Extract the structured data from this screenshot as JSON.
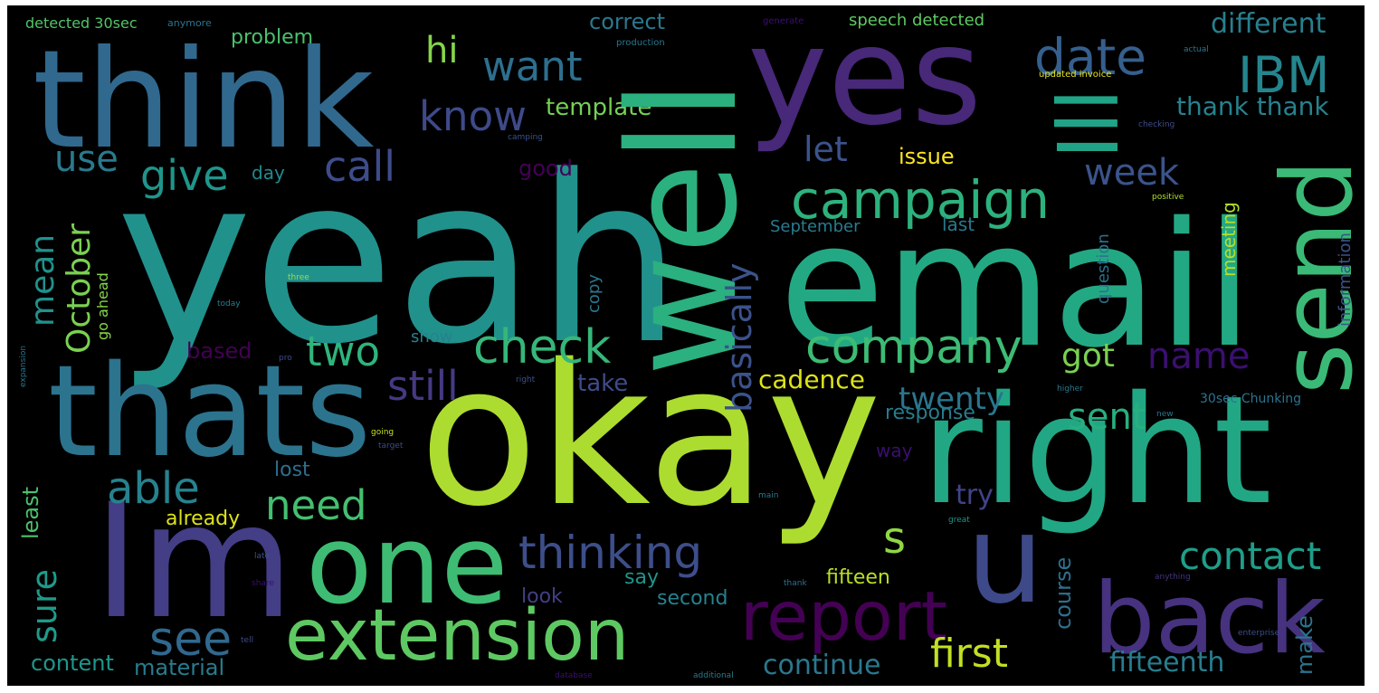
{
  "palette": {
    "background": "#000000",
    "frame": "#ffffff"
  },
  "words": [
    {
      "id": "yeah",
      "text": "yeah",
      "color": "#21918c"
    },
    {
      "id": "okay",
      "text": "okay",
      "color": "#addc30"
    },
    {
      "id": "email",
      "text": "email",
      "color": "#23a884"
    },
    {
      "id": "well",
      "text": "well",
      "color": "#2bb07f"
    },
    {
      "id": "yes",
      "text": "yes",
      "color": "#482878"
    },
    {
      "id": "think",
      "text": "think",
      "color": "#31688e"
    },
    {
      "id": "thats",
      "text": "thats",
      "color": "#2c738e"
    },
    {
      "id": "right",
      "text": "right",
      "color": "#22a785"
    },
    {
      "id": "im",
      "text": "Im",
      "color": "#433e85"
    },
    {
      "id": "one",
      "text": "one",
      "color": "#3fbc73"
    },
    {
      "id": "extension",
      "text": "extension",
      "color": "#5ec962"
    },
    {
      "id": "back",
      "text": "back",
      "color": "#46327e"
    },
    {
      "id": "send",
      "text": "send",
      "color": "#3aba76"
    },
    {
      "id": "u",
      "text": "u",
      "color": "#3e4989"
    },
    {
      "id": "ill",
      "text": "Ill",
      "color": "#20a386"
    },
    {
      "id": "report",
      "text": "report",
      "color": "#440154"
    },
    {
      "id": "company",
      "text": "company",
      "color": "#3dbc74"
    },
    {
      "id": "campaign",
      "text": "campaign",
      "color": "#2db27d"
    },
    {
      "id": "basically",
      "text": "basically",
      "color": "#3b528b"
    },
    {
      "id": "thinking",
      "text": "thinking",
      "color": "#3d4e8a"
    },
    {
      "id": "check",
      "text": "check",
      "color": "#35b779"
    },
    {
      "id": "see",
      "text": "see",
      "color": "#31688e"
    },
    {
      "id": "date",
      "text": "date",
      "color": "#355f8d"
    },
    {
      "id": "ibm",
      "text": "IBM",
      "color": "#25858e"
    },
    {
      "id": "want",
      "text": "want",
      "color": "#2e6f8e"
    },
    {
      "id": "know",
      "text": "know",
      "color": "#3e4a89"
    },
    {
      "id": "call",
      "text": "call",
      "color": "#3e4c8a"
    },
    {
      "id": "give",
      "text": "give",
      "color": "#1f958b"
    },
    {
      "id": "use",
      "text": "use",
      "color": "#297a8e"
    },
    {
      "id": "hi",
      "text": "hi",
      "color": "#86d549"
    },
    {
      "id": "let",
      "text": "let",
      "color": "#3b528b"
    },
    {
      "id": "week",
      "text": "week",
      "color": "#3a548c"
    },
    {
      "id": "two",
      "text": "two",
      "color": "#2fb47c"
    },
    {
      "id": "need",
      "text": "need",
      "color": "#44bf70"
    },
    {
      "id": "able",
      "text": "able",
      "color": "#26828e"
    },
    {
      "id": "still",
      "text": "still",
      "color": "#443a83"
    },
    {
      "id": "name",
      "text": "name",
      "color": "#3b0f70"
    },
    {
      "id": "got",
      "text": "got",
      "color": "#7ad151"
    },
    {
      "id": "sent",
      "text": "sent",
      "color": "#29af7f"
    },
    {
      "id": "twenty",
      "text": "twenty",
      "color": "#2a768e"
    },
    {
      "id": "contact",
      "text": "contact",
      "color": "#1f9e89"
    },
    {
      "id": "first",
      "text": "first",
      "color": "#c2df23"
    },
    {
      "id": "s",
      "text": "s",
      "color": "#90d743"
    },
    {
      "id": "october",
      "text": "October",
      "color": "#7ad151"
    },
    {
      "id": "mean",
      "text": "mean",
      "color": "#20928c"
    },
    {
      "id": "sure",
      "text": "sure",
      "color": "#1f9a8a"
    },
    {
      "id": "different",
      "text": "different",
      "color": "#277f8e"
    },
    {
      "id": "thank_thank",
      "text": "thank thank",
      "color": "#26828e"
    },
    {
      "id": "template",
      "text": "template",
      "color": "#75d054"
    },
    {
      "id": "correct",
      "text": "correct",
      "color": "#2a788e"
    },
    {
      "id": "problem",
      "text": "problem",
      "color": "#4ac16d"
    },
    {
      "id": "speech_detected",
      "text": "speech detected",
      "color": "#5ec962"
    },
    {
      "id": "detected_30sec",
      "text": "detected 30sec",
      "color": "#52c569"
    },
    {
      "id": "issue",
      "text": "issue",
      "color": "#fde725"
    },
    {
      "id": "cadence",
      "text": "cadence",
      "color": "#dde318"
    },
    {
      "id": "good",
      "text": "good",
      "color": "#440154"
    },
    {
      "id": "september",
      "text": "September",
      "color": "#297b8e"
    },
    {
      "id": "last",
      "text": "last",
      "color": "#2a788e"
    },
    {
      "id": "day",
      "text": "day",
      "color": "#238a8d"
    },
    {
      "id": "meeting",
      "text": "meeting",
      "color": "#b5de2b"
    },
    {
      "id": "question",
      "text": "question",
      "color": "#2c718e"
    },
    {
      "id": "information",
      "text": "information",
      "color": "#3b528b"
    },
    {
      "id": "response",
      "text": "response",
      "color": "#287c8e"
    },
    {
      "id": "go_ahead",
      "text": "go ahead",
      "color": "#86d549"
    },
    {
      "id": "based",
      "text": "based",
      "color": "#440154"
    },
    {
      "id": "show",
      "text": "show",
      "color": "#26828e"
    },
    {
      "id": "copy",
      "text": "copy",
      "color": "#2a768e"
    },
    {
      "id": "take",
      "text": "take",
      "color": "#3e4c8a"
    },
    {
      "id": "least",
      "text": "least",
      "color": "#4ac16d"
    },
    {
      "id": "already",
      "text": "already",
      "color": "#dde318"
    },
    {
      "id": "lost",
      "text": "lost",
      "color": "#2e6e8e"
    },
    {
      "id": "try",
      "text": "try",
      "color": "#414487"
    },
    {
      "id": "way",
      "text": "way",
      "color": "#3b0f70"
    },
    {
      "id": "course",
      "text": "course",
      "color": "#2d708e"
    },
    {
      "id": "say",
      "text": "say",
      "color": "#1f958b"
    },
    {
      "id": "fifteen",
      "text": "fifteen",
      "color": "#b8de29"
    },
    {
      "id": "look",
      "text": "look",
      "color": "#423f85"
    },
    {
      "id": "second",
      "text": "second",
      "color": "#26828e"
    },
    {
      "id": "continue",
      "text": "continue",
      "color": "#2a788e"
    },
    {
      "id": "fifteenth",
      "text": "fifteenth",
      "color": "#287d8e"
    },
    {
      "id": "make",
      "text": "make",
      "color": "#2b748e"
    },
    {
      "id": "content",
      "text": "content",
      "color": "#1f968b"
    },
    {
      "id": "material",
      "text": "material",
      "color": "#287c8e"
    },
    {
      "id": "30sec_chunking",
      "text": "30sec Chunking",
      "color": "#2c738e"
    },
    {
      "id": "anymore",
      "text": "anymore",
      "color": "#2c738e"
    },
    {
      "id": "generate",
      "text": "generate",
      "color": "#3b0f70"
    },
    {
      "id": "production",
      "text": "production",
      "color": "#2a768e"
    },
    {
      "id": "updated_invoice",
      "text": "updated invoice",
      "color": "#e5e419"
    },
    {
      "id": "checking",
      "text": "checking",
      "color": "#3e4c8a"
    },
    {
      "id": "actual",
      "text": "actual",
      "color": "#2a768e"
    },
    {
      "id": "positive",
      "text": "positive",
      "color": "#b5de2b"
    },
    {
      "id": "today",
      "text": "today",
      "color": "#287d8e"
    },
    {
      "id": "three",
      "text": "three",
      "color": "#a0da39"
    },
    {
      "id": "expansion",
      "text": "expansion",
      "color": "#2a768e"
    },
    {
      "id": "anything",
      "text": "anything",
      "color": "#46327e"
    },
    {
      "id": "enterprise",
      "text": "enterprise",
      "color": "#3e4c8a"
    },
    {
      "id": "database",
      "text": "database",
      "color": "#3b0f70"
    },
    {
      "id": "additional",
      "text": "additional",
      "color": "#287c8e"
    },
    {
      "id": "higher",
      "text": "higher",
      "color": "#2a788e"
    },
    {
      "id": "going",
      "text": "going",
      "color": "#c8e020"
    },
    {
      "id": "target",
      "text": "target",
      "color": "#3e4c8a"
    },
    {
      "id": "great",
      "text": "great",
      "color": "#1f968b"
    },
    {
      "id": "thank",
      "text": "thank",
      "color": "#2c738e"
    },
    {
      "id": "late",
      "text": "late",
      "color": "#3b528b"
    },
    {
      "id": "share",
      "text": "share",
      "color": "#3b0f70"
    },
    {
      "id": "main",
      "text": "main",
      "color": "#2a788e"
    },
    {
      "id": "campus",
      "text": "camping",
      "color": "#3b528b"
    },
    {
      "id": "new",
      "text": "new",
      "color": "#2a768e"
    },
    {
      "id": "sure2",
      "text": "pro",
      "color": "#3e4c8a"
    },
    {
      "id": "right2",
      "text": "right",
      "color": "#3b528b"
    },
    {
      "id": "tell",
      "text": "tell",
      "color": "#3e4c8a"
    }
  ]
}
